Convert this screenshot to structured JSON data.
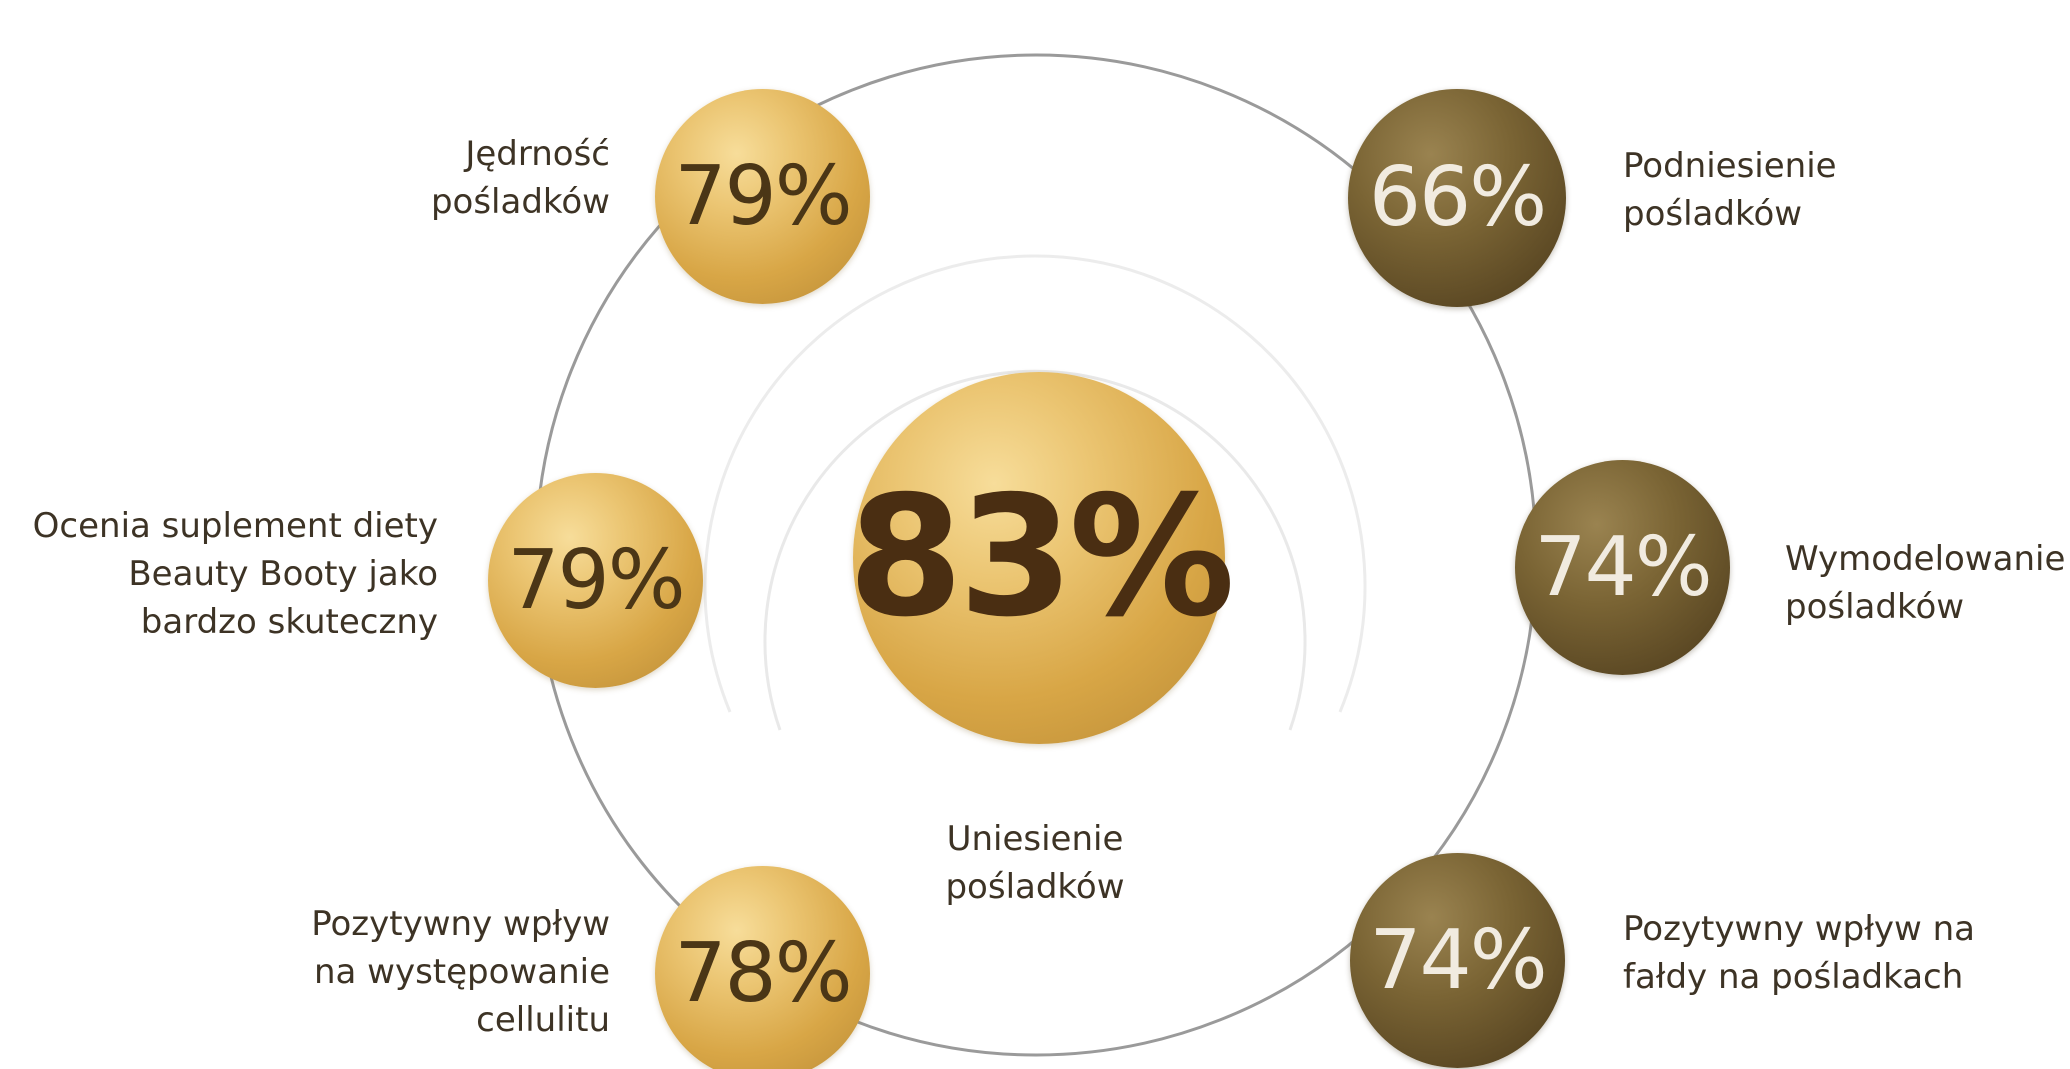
{
  "center": {
    "value": "83%",
    "label": "Uniesienie\npośladków"
  },
  "items": [
    {
      "value": "79%",
      "label": "Jędrność\npośladków",
      "tone": "gold"
    },
    {
      "value": "79%",
      "label": "Ocenia suplement diety\nBeauty Booty jako\nbardzo skuteczny",
      "tone": "gold"
    },
    {
      "value": "78%",
      "label": "Pozytywny wpływ\nna występowanie\ncellulitu",
      "tone": "gold"
    },
    {
      "value": "66%",
      "label": "Podniesienie\npośladków",
      "tone": "dark"
    },
    {
      "value": "74%",
      "label": "Wymodelowanie\npośladków",
      "tone": "dark"
    },
    {
      "value": "74%",
      "label": "Pozytywny wpływ na\nfałdy na pośladkach",
      "tone": "dark"
    }
  ],
  "colors": {
    "gold": "#d8a646",
    "dark": "#5a4723",
    "text": "#3d3325",
    "ring": "#9a9a9a"
  }
}
